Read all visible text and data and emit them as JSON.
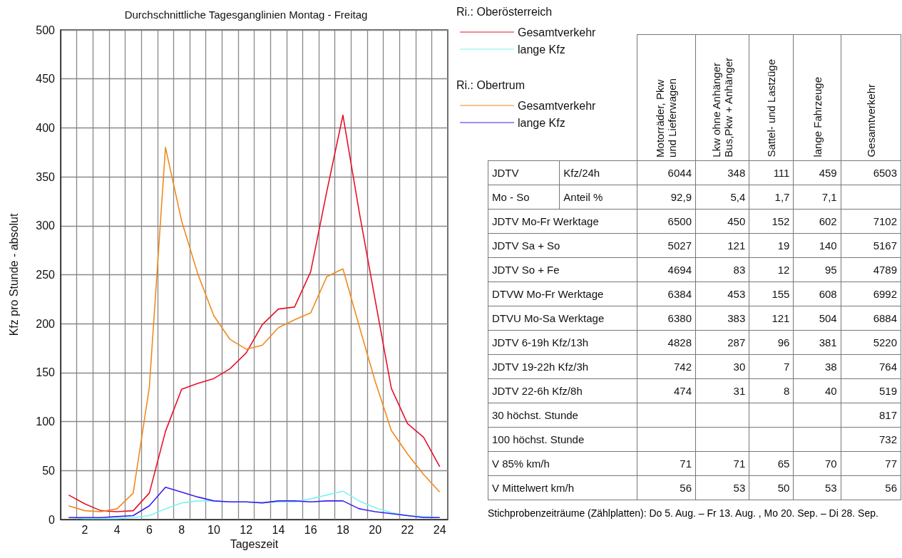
{
  "chart_data": [
    {
      "type": "line",
      "title": "Durchschnittliche Tagesganglinien Montag - Freitag",
      "xlabel": "Tageszeit",
      "ylabel": "Kfz pro Stunde - absolut",
      "legend_title": [
        "Ri.: Oberösterreich",
        "Ri.: Obertrum"
      ],
      "x": [
        1,
        2,
        3,
        4,
        5,
        6,
        7,
        8,
        9,
        10,
        11,
        12,
        13,
        14,
        15,
        16,
        17,
        18,
        19,
        20,
        21,
        22,
        23,
        24
      ],
      "xlim": [
        0.5,
        24.5
      ],
      "xticks": [
        {
          "value": 0.5,
          "label": null
        },
        {
          "value": 1.5,
          "label": null
        },
        2,
        {
          "value": 2.5,
          "label": null
        },
        {
          "value": 3.5,
          "label": null
        },
        4,
        {
          "value": 4.5,
          "label": null
        },
        {
          "value": 5.5,
          "label": null
        },
        6,
        {
          "value": 6.5,
          "label": null
        },
        {
          "value": 7.5,
          "label": null
        },
        8,
        {
          "value": 8.5,
          "label": null
        },
        {
          "value": 9.5,
          "label": null
        },
        10,
        {
          "value": 10.5,
          "label": null
        },
        {
          "value": 11.5,
          "label": null
        },
        12,
        {
          "value": 12.5,
          "label": null
        },
        {
          "value": 13.5,
          "label": null
        },
        14,
        {
          "value": 14.5,
          "label": null
        },
        {
          "value": 15.5,
          "label": null
        },
        16,
        {
          "value": 16.5,
          "label": null
        },
        {
          "value": 17.5,
          "label": null
        },
        18,
        {
          "value": 18.5,
          "label": null
        },
        {
          "value": 19.5,
          "label": null
        },
        20,
        {
          "value": 20.5,
          "label": null
        },
        {
          "value": 21.5,
          "label": null
        },
        22,
        {
          "value": 22.5,
          "label": null
        },
        {
          "value": 23.5,
          "label": null
        },
        24,
        {
          "value": 24.5,
          "label": null
        }
      ],
      "series": [
        {
          "name": "Gesamtverkehr",
          "color": "#e8102a",
          "values": [
            25,
            16,
            9,
            8,
            9,
            27,
            90,
            133,
            139,
            144,
            154,
            170,
            199,
            215,
            217,
            253,
            335,
            413,
            315,
            224,
            134,
            98,
            84,
            54
          ]
        },
        {
          "name": "lange Kfz",
          "color": "#7af4f4",
          "values": [
            2,
            1,
            1,
            1,
            2,
            4,
            11,
            17,
            19,
            19,
            18,
            18,
            17,
            18,
            18,
            21,
            25,
            29,
            19,
            12,
            7,
            4,
            3,
            2
          ]
        },
        {
          "name": "Gesamtverkehr",
          "color": "#f08a1c",
          "values": [
            14,
            9,
            8,
            11,
            27,
            135,
            380,
            305,
            251,
            208,
            184,
            174,
            178,
            196,
            204,
            211,
            248,
            256,
            198,
            141,
            91,
            67,
            46,
            28
          ]
        },
        {
          "name": "lange Kfz",
          "color": "#3a1ef0",
          "values": [
            2,
            2,
            2,
            3,
            4,
            14,
            33,
            28,
            23,
            19,
            18,
            18,
            17,
            19,
            19,
            18,
            19,
            19,
            11,
            8,
            6,
            4,
            2,
            2
          ]
        }
      ],
      "ylim": [
        0,
        500
      ],
      "yticks": [
        0,
        50,
        100,
        150,
        200,
        250,
        300,
        350,
        400,
        450,
        500
      ],
      "grid": true,
      "legend": "right",
      "marker": "none",
      "line_style": "solid"
    },
    {
      "type": "other",
      "categories": [
        "Motorräder, Pkw\nund Lieferwagen",
        "Lkw ohne Anhänger\nBus,Pkw + Anhänger",
        "Sattel- und Lastzüge",
        "lange Fahrzeuge",
        "Gesamtverkehr"
      ],
      "y_categories": [
        "JDTV",
        "Mo - So",
        "JDTV Mo-Fr Werktage",
        "JDTV Sa + So",
        "JDTV So + Fe",
        "DTVW Mo-Fr Werktage",
        "DTVU Mo-Sa Werktage",
        "JDTV 6-19h Kfz/13h",
        "JDTV 19-22h Kfz/3h",
        "JDTV 22-6h Kfz/8h",
        "30 höchst. Stunde",
        "100 höchst. Stunde",
        "V 85% km/h",
        "V Mittelwert km/h"
      ],
      "y2_categories": [
        "Kfz/24h",
        "Anteil %",
        null,
        null,
        null,
        null,
        null,
        null,
        null,
        null,
        null,
        null,
        null,
        null
      ],
      "cell_labels": [
        [
          "6044",
          "348",
          "111",
          "459",
          "6503"
        ],
        [
          "92,9",
          "5,4",
          "1,7",
          "7,1",
          null
        ],
        [
          "6500",
          "450",
          "152",
          "602",
          "7102"
        ],
        [
          "5027",
          "121",
          "19",
          "140",
          "5167"
        ],
        [
          "4694",
          "83",
          "12",
          "95",
          "4789"
        ],
        [
          "6384",
          "453",
          "155",
          "608",
          "6992"
        ],
        [
          "6380",
          "383",
          "121",
          "504",
          "6884"
        ],
        [
          "4828",
          "287",
          "96",
          "381",
          "5220"
        ],
        [
          "742",
          "30",
          "7",
          "38",
          "764"
        ],
        [
          "474",
          "31",
          "8",
          "40",
          "519"
        ],
        [
          null,
          null,
          null,
          null,
          "817"
        ],
        [
          null,
          null,
          null,
          null,
          "732"
        ],
        [
          "71",
          "71",
          "65",
          "70",
          "77"
        ],
        [
          "56",
          "53",
          "50",
          "53",
          "56"
        ]
      ],
      "annotations": [
        "Stichprobenzeiträume (Zählplatten): Do 5. Aug. – Fr 13. Aug. , Mo 20. Sep. – Di 28. Sep."
      ]
    }
  ]
}
